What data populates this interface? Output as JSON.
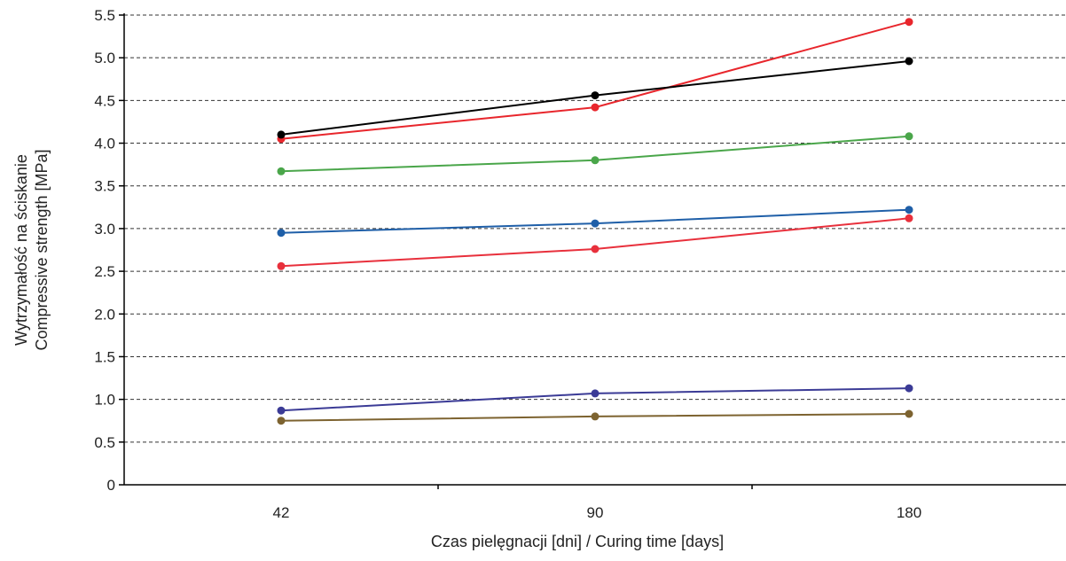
{
  "chart_data": {
    "type": "line",
    "title": "",
    "xlabel": "Czas pielęgnacji [dni] / Curing time [days]",
    "ylabel_lines": [
      "Wytrzymałość na ściskanie",
      "Compressive strength [MPa]"
    ],
    "categories": [
      "42",
      "90",
      "180"
    ],
    "ylim": [
      0,
      5.5
    ],
    "yticks": [
      "0",
      "0.5",
      "1.0",
      "1.5",
      "2.0",
      "2.5",
      "3.0",
      "3.5",
      "4.0",
      "4.5",
      "5.0",
      "5.5"
    ],
    "grid": "horizontal dashed",
    "legend": "none",
    "series": [
      {
        "color": "#e8262c",
        "values": [
          4.05,
          4.42,
          5.42
        ]
      },
      {
        "color": "#000000",
        "values": [
          4.1,
          4.56,
          4.96
        ]
      },
      {
        "color": "#4aa64a",
        "values": [
          3.67,
          3.8,
          4.08
        ]
      },
      {
        "color": "#1f5fa8",
        "values": [
          2.95,
          3.06,
          3.22
        ]
      },
      {
        "color": "#e8303c",
        "values": [
          2.56,
          2.76,
          3.12
        ]
      },
      {
        "color": "#3b3b96",
        "values": [
          0.87,
          1.07,
          1.13
        ]
      },
      {
        "color": "#7d6330",
        "values": [
          0.75,
          0.8,
          0.83
        ]
      }
    ]
  }
}
